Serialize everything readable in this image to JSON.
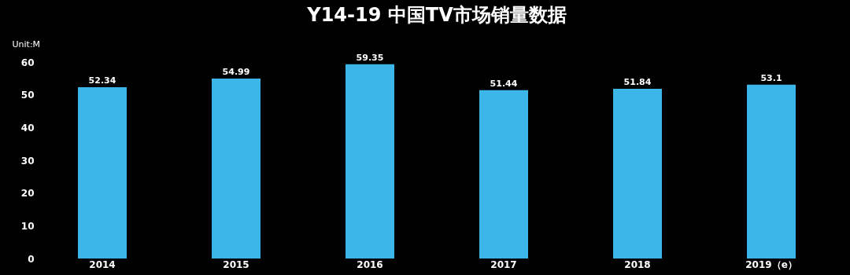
{
  "chart_data": {
    "type": "bar",
    "title": "Y14-19 中国TV市场销量数据",
    "ylabel": "Unit:M",
    "categories": [
      "2014",
      "2015",
      "2016",
      "2017",
      "2018",
      "2019（e）"
    ],
    "series": [
      {
        "color": "#3cb6e8",
        "values": [
          52.34,
          54.99,
          59.35,
          51.44,
          51.84,
          53.1
        ]
      }
    ],
    "ylim": [
      0,
      60
    ],
    "yticks": [
      0,
      10,
      20,
      30,
      40,
      50,
      60
    ],
    "grid": false,
    "data_labels": true
  }
}
